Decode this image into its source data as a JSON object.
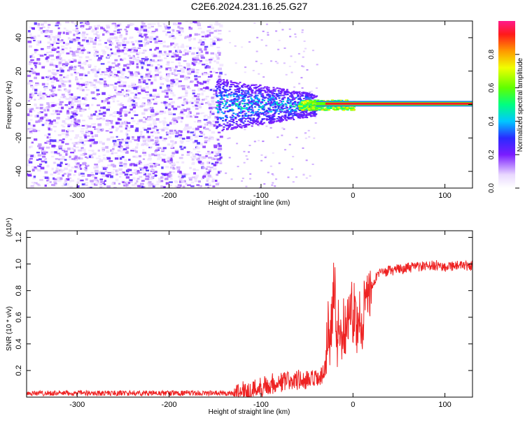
{
  "title": "C2E6.2024.231.16.25.G27",
  "chart_data": [
    {
      "type": "heatmap",
      "xlabel": "Height of straight line (km)",
      "ylabel": "Frequency (Hz)",
      "xlim": [
        -355,
        130
      ],
      "ylim": [
        -50,
        50
      ],
      "xticks": [
        -300,
        -200,
        -100,
        0,
        100
      ],
      "yticks": [
        -40,
        -20,
        0,
        20,
        40
      ],
      "colorbar": {
        "label": "Normalized spectral amplitude",
        "range": [
          0.0,
          1.0
        ],
        "ticks": [
          "0.0",
          "0.2",
          "0.4",
          "0.6",
          "0.8"
        ]
      },
      "regions": [
        {
          "x_range": [
            -355,
            -145
          ],
          "freq_range": [
            -50,
            50
          ],
          "amplitude": "0.05-0.25 noise"
        },
        {
          "x_range": [
            -145,
            -40
          ],
          "freq_range": [
            -15,
            12
          ],
          "amplitude": "0.2-0.5"
        },
        {
          "x_range": [
            -40,
            130
          ],
          "freq_center": 0.5,
          "amplitude": "0.7-1.0"
        }
      ],
      "grid": false
    },
    {
      "type": "line",
      "xlabel": "Height of straight line (km)",
      "ylabel": "SNR (10 * v/v)",
      "yscale_label": "(x10⁴)",
      "xlim": [
        -355,
        130
      ],
      "ylim": [
        0,
        1.25
      ],
      "xticks": [
        -300,
        -200,
        -100,
        0,
        100
      ],
      "yticks": [
        0.2,
        0.4,
        0.6,
        0.8,
        1.0,
        1.2
      ],
      "series": [
        {
          "color": "#ee2222",
          "x": [
            -355,
            -300,
            -250,
            -200,
            -150,
            -130,
            -120,
            -110,
            -100,
            -90,
            -80,
            -70,
            -60,
            -50,
            -40,
            -35,
            -30,
            -28,
            -25,
            -22,
            -20,
            -18,
            -15,
            -12,
            -10,
            -8,
            -5,
            -2,
            0,
            2,
            5,
            8,
            10,
            12,
            15,
            18,
            20,
            25,
            30,
            40,
            50,
            60,
            70,
            80,
            90,
            100,
            110,
            120,
            130
          ],
          "values": [
            0.03,
            0.03,
            0.03,
            0.03,
            0.03,
            0.03,
            0.04,
            0.05,
            0.08,
            0.1,
            0.11,
            0.12,
            0.13,
            0.12,
            0.13,
            0.14,
            0.2,
            0.55,
            0.45,
            0.7,
            0.9,
            0.35,
            0.6,
            0.4,
            0.55,
            0.5,
            0.62,
            0.7,
            0.62,
            0.7,
            0.5,
            0.6,
            0.4,
            0.7,
            0.8,
            0.78,
            0.84,
            0.9,
            0.93,
            0.95,
            0.96,
            0.97,
            0.98,
            0.98,
            0.99,
            0.98,
            0.99,
            0.98,
            0.99
          ]
        }
      ],
      "grid": false
    }
  ]
}
